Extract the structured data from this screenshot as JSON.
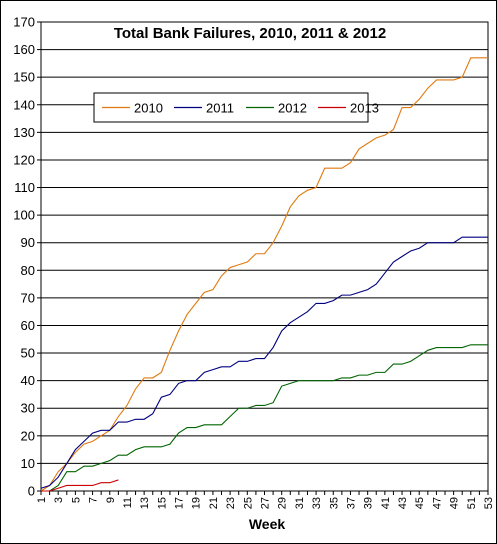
{
  "chart_data": {
    "type": "line",
    "title": "Total Bank Failures, 2010, 2011 & 2012",
    "xlabel": "Week",
    "ylabel": "",
    "xlim": [
      1,
      53
    ],
    "ylim": [
      0,
      170
    ],
    "y_ticks": [
      0,
      10,
      20,
      30,
      40,
      50,
      60,
      70,
      80,
      90,
      100,
      110,
      120,
      130,
      140,
      150,
      160,
      170
    ],
    "x_ticks": [
      "1",
      "3",
      "5",
      "7",
      "9",
      "11",
      "13",
      "15",
      "17",
      "19",
      "21",
      "23",
      "25",
      "27",
      "29",
      "31",
      "33",
      "35",
      "37",
      "39",
      "41",
      "43",
      "45",
      "47",
      "49",
      "51",
      "53"
    ],
    "grid": true,
    "legend_position": "upper-left",
    "series": [
      {
        "name": "2010",
        "color": "#E07A10",
        "x": [
          1,
          2,
          3,
          4,
          5,
          6,
          7,
          8,
          9,
          10,
          11,
          12,
          13,
          14,
          15,
          16,
          17,
          18,
          19,
          20,
          21,
          22,
          23,
          24,
          25,
          26,
          27,
          28,
          29,
          30,
          31,
          32,
          33,
          34,
          35,
          36,
          37,
          38,
          39,
          40,
          41,
          42,
          43,
          44,
          45,
          46,
          47,
          48,
          49,
          50,
          51,
          52,
          53
        ],
        "values": [
          0,
          2,
          7,
          10,
          14,
          17,
          18,
          20,
          22,
          27,
          31,
          37,
          41,
          41,
          43,
          51,
          58,
          64,
          68,
          72,
          73,
          78,
          81,
          82,
          83,
          86,
          86,
          90,
          96,
          103,
          107,
          109,
          110,
          117,
          117,
          117,
          119,
          124,
          126,
          128,
          129,
          131,
          139,
          139,
          142,
          146,
          149,
          149,
          149,
          150,
          157,
          157,
          157
        ]
      },
      {
        "name": "2011",
        "color": "#00007F",
        "x": [
          1,
          2,
          3,
          4,
          5,
          6,
          7,
          8,
          9,
          10,
          11,
          12,
          13,
          14,
          15,
          16,
          17,
          18,
          19,
          20,
          21,
          22,
          23,
          24,
          25,
          26,
          27,
          28,
          29,
          30,
          31,
          32,
          33,
          34,
          35,
          36,
          37,
          38,
          39,
          40,
          41,
          42,
          43,
          44,
          45,
          46,
          47,
          48,
          49,
          50,
          51,
          52,
          53
        ],
        "values": [
          1,
          2,
          5,
          10,
          15,
          18,
          21,
          22,
          22,
          25,
          25,
          26,
          26,
          28,
          34,
          35,
          39,
          40,
          40,
          43,
          44,
          45,
          45,
          47,
          47,
          48,
          48,
          52,
          58,
          61,
          63,
          65,
          68,
          68,
          69,
          71,
          71,
          72,
          73,
          75,
          79,
          83,
          85,
          87,
          88,
          90,
          90,
          90,
          90,
          92,
          92,
          92,
          92
        ]
      },
      {
        "name": "2012",
        "color": "#006400",
        "x": [
          1,
          2,
          3,
          4,
          5,
          6,
          7,
          8,
          9,
          10,
          11,
          12,
          13,
          14,
          15,
          16,
          17,
          18,
          19,
          20,
          21,
          22,
          23,
          24,
          25,
          26,
          27,
          28,
          29,
          30,
          31,
          32,
          33,
          34,
          35,
          36,
          37,
          38,
          39,
          40,
          41,
          42,
          43,
          44,
          45,
          46,
          47,
          48,
          49,
          50,
          51,
          52,
          53
        ],
        "values": [
          0,
          0,
          2,
          7,
          7,
          9,
          9,
          10,
          11,
          13,
          13,
          15,
          16,
          16,
          16,
          17,
          21,
          23,
          23,
          24,
          24,
          24,
          27,
          30,
          30,
          31,
          31,
          32,
          38,
          39,
          40,
          40,
          40,
          40,
          40,
          41,
          41,
          42,
          42,
          43,
          43,
          46,
          46,
          47,
          49,
          51,
          52,
          52,
          52,
          52,
          53,
          53,
          53
        ]
      },
      {
        "name": "2013",
        "color": "#CC0000",
        "x": [
          1,
          2,
          3,
          4,
          5,
          6,
          7,
          8,
          9,
          10
        ],
        "values": [
          0,
          0,
          1,
          2,
          2,
          2,
          2,
          3,
          3,
          4
        ]
      }
    ]
  }
}
